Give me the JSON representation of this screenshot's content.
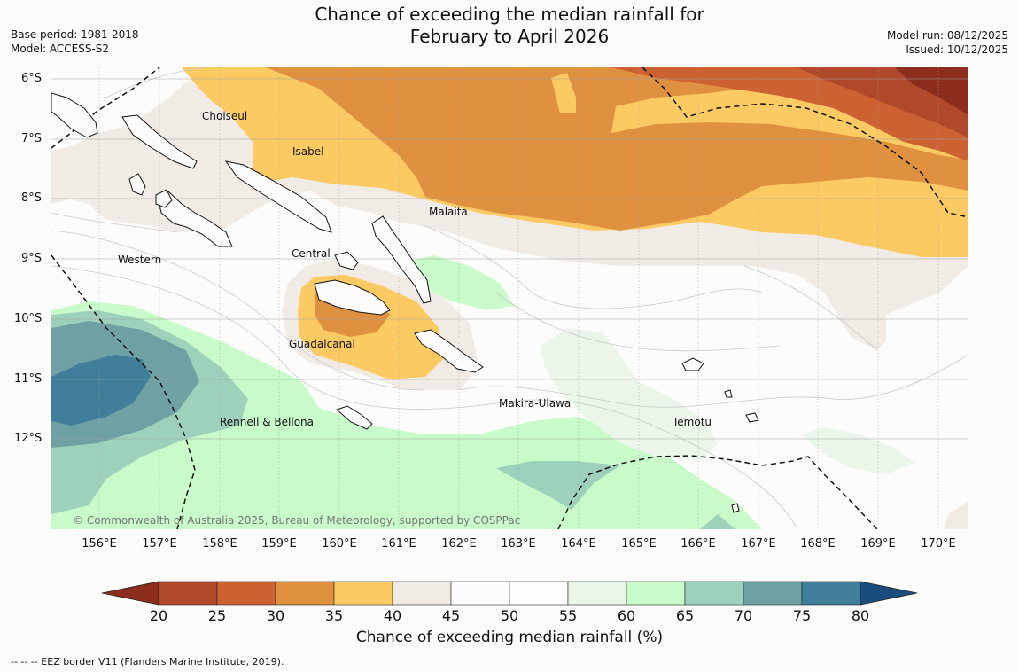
{
  "title": {
    "line1": "Chance of exceeding the median rainfall for",
    "line2": "February to April 2026"
  },
  "meta": {
    "base_period": "Base period: 1981-2018",
    "model": "Model: ACCESS-S2",
    "model_run": "Model run: 08/12/2025",
    "issued": "Issued: 10/12/2025"
  },
  "map": {
    "lat_labels": [
      "6°S",
      "7°S",
      "8°S",
      "9°S",
      "10°S",
      "11°S",
      "12°S"
    ],
    "lon_labels": [
      "156°E",
      "157°E",
      "158°E",
      "159°E",
      "160°E",
      "161°E",
      "162°E",
      "163°E",
      "164°E",
      "165°E",
      "166°E",
      "167°E",
      "168°E",
      "169°E",
      "170°E"
    ],
    "places": {
      "choiseul": "Choiseul",
      "isabel": "Isabel",
      "malaita": "Malaita",
      "central": "Central",
      "western": "Western",
      "guadalcanal": "Guadalcanal",
      "makira_ulawa": "Makira-Ulawa",
      "rennell_bellona": "Rennell & Bellona",
      "temotu": "Temotu"
    },
    "copyright": "© Commonwealth of Australia 2025, Bureau of Meteorology, supported by COSPPac"
  },
  "colorbar": {
    "ticks": [
      "20",
      "25",
      "30",
      "35",
      "40",
      "45",
      "50",
      "55",
      "60",
      "65",
      "70",
      "75",
      "80"
    ],
    "colors": [
      "#8c2d1e",
      "#b0492a",
      "#cc6232",
      "#e0913f",
      "#fcca63",
      "#f1ebe6",
      "#fcfdfb",
      "#fdfefc",
      "#ebf5ea",
      "#c8fbc9",
      "#9dd1bb",
      "#6fa1a4",
      "#417e9a",
      "#1b4c7e"
    ],
    "label": "Chance of exceeding median rainfall (%)"
  },
  "footer": "--  --  -- EEZ border V11 (Flanders Marine Institute, 2019)."
}
